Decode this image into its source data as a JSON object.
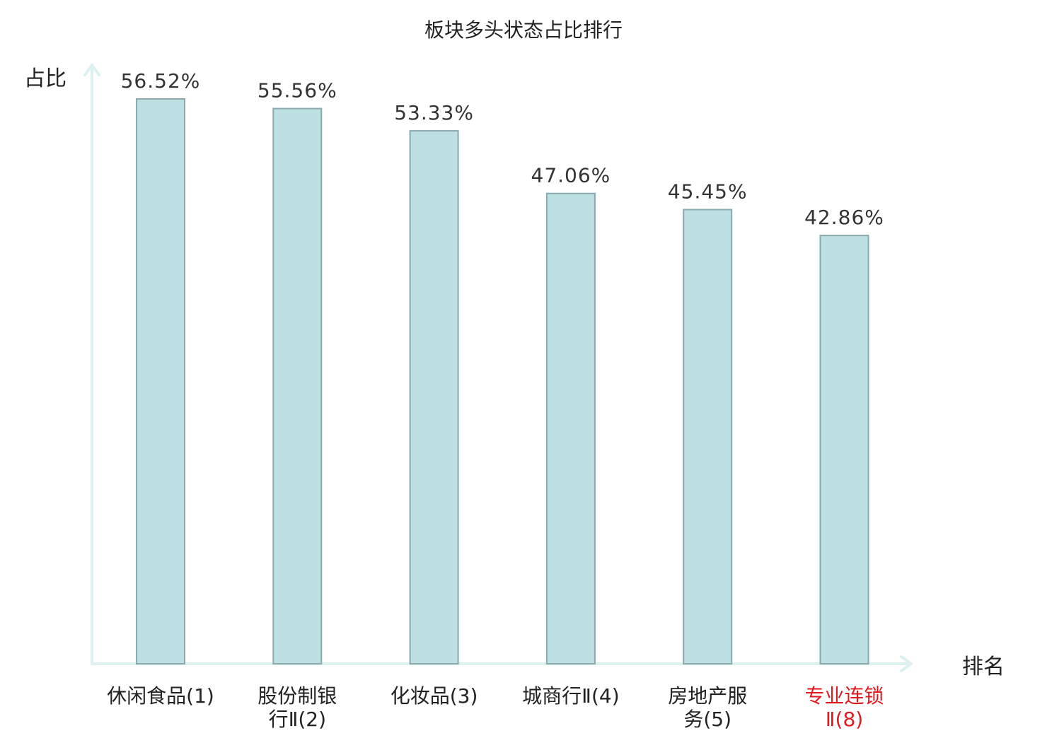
{
  "chart_data": {
    "type": "bar",
    "title": "板块多头状态占比排行",
    "ylabel": "占比",
    "xlabel": "排名",
    "categories": [
      "休闲食品(1)",
      "股份制银行Ⅱ(2)",
      "化妆品(3)",
      "城商行Ⅱ(4)",
      "房地产服务(5)",
      "专业连锁Ⅱ(8)"
    ],
    "category_lines": [
      [
        "休闲食品(1)"
      ],
      [
        "股份制银",
        "行Ⅱ(2)"
      ],
      [
        "化妆品(3)"
      ],
      [
        "城商行Ⅱ(4)"
      ],
      [
        "房地产服",
        "务(5)"
      ],
      [
        "专业连锁",
        "Ⅱ(8)"
      ]
    ],
    "values": [
      56.52,
      55.56,
      53.33,
      47.06,
      45.45,
      42.86
    ],
    "value_labels": [
      "56.52%",
      "55.56%",
      "53.33%",
      "47.06%",
      "45.45%",
      "42.86%"
    ],
    "highlight_category_index": 5,
    "ylim": [
      0,
      63
    ],
    "grid": false,
    "legend": "none",
    "colors": {
      "bar_fill": "#bde0e3",
      "bar_stroke": "#8aaaad",
      "axis": "#dcf1ef",
      "text": "#222222",
      "value_label": "#333333",
      "highlight": "#e0191f"
    }
  }
}
